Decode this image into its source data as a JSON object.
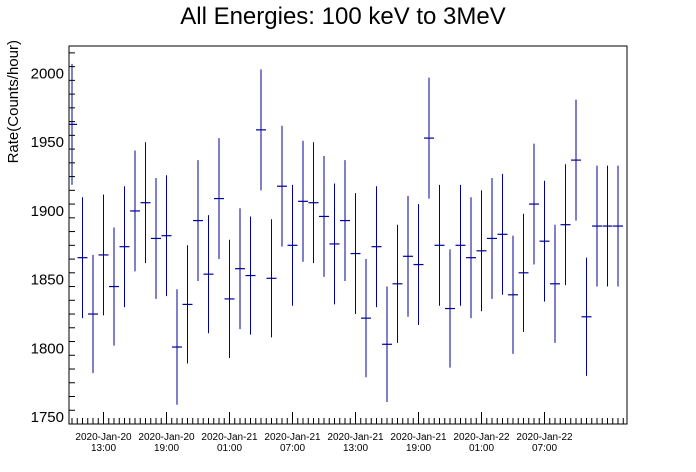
{
  "chart_data": {
    "type": "scatter",
    "title": "All Energies:  100 keV to 3MeV",
    "ylabel": "Rate(Counts/hour)",
    "xlabel": "",
    "ylim": [
      1745,
      2020
    ],
    "xlim": [
      0,
      108
    ],
    "yticks": [
      1750,
      1800,
      1850,
      1900,
      1950,
      2000
    ],
    "xtick_labels": [
      {
        "x": 6,
        "date": "2020-Jan-20",
        "time": "13:00"
      },
      {
        "x": 18,
        "date": "2020-Jan-20",
        "time": "19:00"
      },
      {
        "x": 30,
        "date": "2020-Jan-21",
        "time": "01:00"
      },
      {
        "x": 42,
        "date": "2020-Jan-21",
        "time": "07:00"
      },
      {
        "x": 54,
        "date": "2020-Jan-21",
        "time": "13:00"
      },
      {
        "x": 66,
        "date": "2020-Jan-21",
        "time": "19:00"
      },
      {
        "x": 78,
        "date": "2020-Jan-22",
        "time": "01:00"
      },
      {
        "x": 90,
        "date": "2020-Jan-22",
        "time": "07:00"
      }
    ],
    "grid": false,
    "series": [
      {
        "color": "#000099",
        "x": [
          0,
          2,
          4,
          6,
          8,
          10,
          12,
          14,
          16,
          18,
          20,
          22,
          24,
          26,
          28,
          30,
          32,
          34,
          36,
          38,
          40,
          42,
          44,
          46,
          48,
          50,
          52,
          54,
          56,
          58,
          60,
          62,
          64,
          66,
          68,
          70,
          72,
          74,
          76,
          78,
          80,
          82,
          84,
          86,
          88,
          90,
          92,
          94,
          96,
          98,
          100,
          102,
          104,
          106
        ],
        "y": [
          1963,
          1866,
          1825,
          1868,
          1845,
          1874,
          1900,
          1906,
          1880,
          1882,
          1801,
          1832,
          1893,
          1854,
          1909,
          1836,
          1858,
          1853,
          1959,
          1851,
          1918,
          1875,
          1907,
          1906,
          1896,
          1876,
          1893,
          1869,
          1822,
          1874,
          1803,
          1847,
          1867,
          1861,
          1953,
          1875,
          1829,
          1875,
          1866,
          1871,
          1880,
          1883,
          1839,
          1855,
          1905,
          1878,
          1847,
          1890,
          1937,
          1823,
          1889,
          1889,
          1889,
          1889
        ],
        "err": [
          44,
          44,
          43,
          44,
          43,
          44,
          44,
          44,
          44,
          44,
          42,
          43,
          44,
          43,
          44,
          43,
          44,
          43,
          44,
          43,
          44,
          44,
          44,
          44,
          44,
          44,
          44,
          44,
          43,
          44,
          42,
          43,
          44,
          44,
          44,
          44,
          43,
          44,
          44,
          44,
          44,
          44,
          43,
          43,
          44,
          44,
          43,
          44,
          44,
          43,
          44,
          44,
          44,
          44
        ]
      }
    ]
  }
}
